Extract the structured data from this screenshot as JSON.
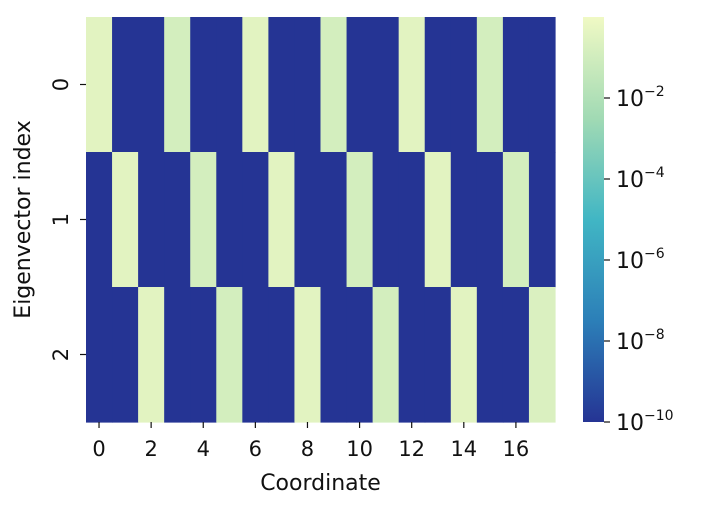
{
  "chart_data": {
    "type": "heatmap",
    "xlabel": "Coordinate",
    "ylabel": "Eigenvector index",
    "x_ticks": [
      "0",
      "2",
      "4",
      "6",
      "8",
      "10",
      "12",
      "14",
      "16"
    ],
    "y_ticks": [
      "0",
      "1",
      "2"
    ],
    "colorscale": "YlGnBu",
    "colorbar": {
      "scale": "log",
      "range": [
        1e-10,
        1
      ],
      "ticks": [
        {
          "value": 1e-10,
          "base": "10",
          "exp": "−10"
        },
        {
          "value": 1e-08,
          "base": "10",
          "exp": "−8"
        },
        {
          "value": 1e-06,
          "base": "10",
          "exp": "−6"
        },
        {
          "value": 0.0001,
          "base": "10",
          "exp": "−4"
        },
        {
          "value": 0.01,
          "base": "10",
          "exp": "−2"
        }
      ]
    },
    "rows": [
      [
        0.35,
        1e-10,
        1e-10,
        0.12,
        1e-10,
        1e-10,
        0.35,
        1e-10,
        1e-10,
        0.12,
        1e-10,
        1e-10,
        0.35,
        1e-10,
        1e-10,
        0.12,
        1e-10,
        1e-10
      ],
      [
        1e-10,
        0.35,
        1e-10,
        1e-10,
        0.12,
        1e-10,
        1e-10,
        0.35,
        1e-10,
        1e-10,
        0.12,
        1e-10,
        1e-10,
        0.35,
        1e-10,
        1e-10,
        0.12,
        1e-10
      ],
      [
        1e-10,
        1e-10,
        0.35,
        1e-10,
        1e-10,
        0.12,
        1e-10,
        1e-10,
        0.35,
        1e-10,
        1e-10,
        0.12,
        1e-10,
        1e-10,
        0.35,
        1e-10,
        1e-10,
        0.2
      ]
    ]
  }
}
